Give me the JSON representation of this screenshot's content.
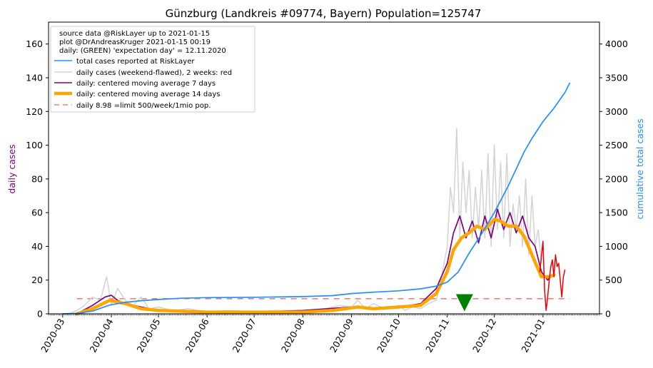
{
  "chart_data": {
    "type": "line",
    "title": "Günzburg (Landkreis #09774, Bayern) Population=125747",
    "ylabel_left": "daily cases",
    "ylabel_right": "cumulative total cases",
    "ylim_left": [
      0,
      173
    ],
    "ylim_right": [
      0,
      4325
    ],
    "yticks_left": [
      0,
      20,
      40,
      60,
      80,
      100,
      120,
      140,
      160
    ],
    "yticks_right": [
      0,
      500,
      1000,
      1500,
      2000,
      2500,
      3000,
      3500,
      4000
    ],
    "xlim": [
      "2020-02-21",
      "2021-02-06"
    ],
    "xticks": [
      {
        "date": "2020-03-01",
        "label": "2020-03"
      },
      {
        "date": "2020-04-01",
        "label": "2020-04"
      },
      {
        "date": "2020-05-01",
        "label": "2020-05"
      },
      {
        "date": "2020-06-01",
        "label": "2020-06"
      },
      {
        "date": "2020-07-01",
        "label": "2020-07"
      },
      {
        "date": "2020-08-01",
        "label": "2020-08"
      },
      {
        "date": "2020-09-01",
        "label": "2020-09"
      },
      {
        "date": "2020-10-01",
        "label": "2020-10"
      },
      {
        "date": "2020-11-01",
        "label": "2020-11"
      },
      {
        "date": "2020-12-01",
        "label": "2020-12"
      },
      {
        "date": "2021-01-01",
        "label": "2021-01"
      }
    ],
    "legend": {
      "position": "top-left",
      "notes": [
        "source data @RiskLayer up to 2021-01-15",
        "plot @DrAndreasKruger 2021-01-15 00:19",
        "daily: (GREEN) 'expectation day' = 12.11.2020"
      ],
      "entries": [
        {
          "label": "total cases reported at RiskLayer",
          "color": "#1e90ff",
          "style": "line"
        },
        {
          "label": "daily cases (weekend-flawed), 2 weeks: red",
          "color": "#d3d3d3",
          "style": "line"
        },
        {
          "label": "daily: centered moving average 7 days",
          "color": "#800080",
          "style": "line"
        },
        {
          "label": "daily: centered moving average 14 days",
          "color": "#ffa500",
          "style": "thick"
        },
        {
          "label": "daily 8.98 =limit 500/week/1mio pop.",
          "color": "#e9837a",
          "style": "dashed"
        }
      ]
    },
    "limit_value": 8.98,
    "limit_range": [
      "2020-03-10",
      "2021-01-18"
    ],
    "expectation_day": {
      "date": "2020-11-12",
      "y": 7
    },
    "series": [
      {
        "key": "cumulative",
        "axis": "right",
        "color": "#1e90ff",
        "x": [
          "2020-03-01",
          "2020-03-10",
          "2020-03-20",
          "2020-03-31",
          "2020-04-10",
          "2020-04-20",
          "2020-04-30",
          "2020-05-15",
          "2020-06-01",
          "2020-07-01",
          "2020-08-01",
          "2020-08-20",
          "2020-09-01",
          "2020-09-15",
          "2020-10-01",
          "2020-10-15",
          "2020-10-25",
          "2020-11-01",
          "2020-11-08",
          "2020-11-15",
          "2020-11-22",
          "2020-12-01",
          "2020-12-10",
          "2020-12-20",
          "2020-12-25",
          "2021-01-01",
          "2021-01-08",
          "2021-01-15",
          "2021-01-18"
        ],
        "y": [
          0,
          5,
          40,
          130,
          170,
          195,
          210,
          230,
          240,
          245,
          255,
          270,
          300,
          320,
          340,
          370,
          410,
          470,
          620,
          900,
          1150,
          1500,
          1900,
          2400,
          2600,
          2850,
          3050,
          3280,
          3420
        ]
      },
      {
        "key": "daily",
        "axis": "left",
        "color": "#d3d3d3",
        "x": [
          "2020-03-05",
          "2020-03-10",
          "2020-03-15",
          "2020-03-20",
          "2020-03-25",
          "2020-03-29",
          "2020-04-01",
          "2020-04-05",
          "2020-04-10",
          "2020-04-15",
          "2020-04-20",
          "2020-04-25",
          "2020-05-01",
          "2020-05-10",
          "2020-05-20",
          "2020-06-01",
          "2020-06-15",
          "2020-07-01",
          "2020-07-15",
          "2020-08-01",
          "2020-08-15",
          "2020-08-25",
          "2020-09-01",
          "2020-09-05",
          "2020-09-10",
          "2020-09-15",
          "2020-09-22",
          "2020-10-01",
          "2020-10-05",
          "2020-10-10",
          "2020-10-15",
          "2020-10-20",
          "2020-10-25",
          "2020-10-28",
          "2020-11-01",
          "2020-11-03",
          "2020-11-05",
          "2020-11-07",
          "2020-11-09",
          "2020-11-11",
          "2020-11-13",
          "2020-11-15",
          "2020-11-17",
          "2020-11-19",
          "2020-11-21",
          "2020-11-23",
          "2020-11-25",
          "2020-11-27",
          "2020-11-29",
          "2020-12-01",
          "2020-12-03",
          "2020-12-05",
          "2020-12-07",
          "2020-12-09",
          "2020-12-11",
          "2020-12-13",
          "2020-12-15",
          "2020-12-17",
          "2020-12-19",
          "2020-12-21",
          "2020-12-23",
          "2020-12-25",
          "2020-12-27",
          "2020-12-29",
          "2020-12-31"
        ],
        "y": [
          0,
          2,
          5,
          10,
          8,
          22,
          5,
          15,
          8,
          5,
          10,
          3,
          4,
          2,
          3,
          1,
          2,
          1,
          2,
          2,
          3,
          5,
          4,
          8,
          3,
          6,
          3,
          5,
          2,
          4,
          3,
          6,
          8,
          20,
          40,
          75,
          60,
          110,
          45,
          90,
          60,
          85,
          45,
          75,
          50,
          85,
          45,
          95,
          40,
          100,
          50,
          90,
          45,
          95,
          40,
          65,
          50,
          70,
          40,
          80,
          35,
          70,
          40,
          50,
          30
        ]
      },
      {
        "key": "daily_recent",
        "axis": "left",
        "color": "#ee0000",
        "x": [
          "2020-12-30",
          "2021-01-01",
          "2021-01-02",
          "2021-01-03",
          "2021-01-04",
          "2021-01-05",
          "2021-01-06",
          "2021-01-07",
          "2021-01-08",
          "2021-01-09",
          "2021-01-10",
          "2021-01-11",
          "2021-01-12",
          "2021-01-13",
          "2021-01-14",
          "2021-01-15"
        ],
        "y": [
          25,
          43,
          15,
          2,
          10,
          20,
          28,
          32,
          22,
          35,
          28,
          30,
          20,
          10,
          22,
          26
        ]
      },
      {
        "key": "ma7",
        "axis": "left",
        "color": "#800080",
        "x": [
          "2020-03-10",
          "2020-03-20",
          "2020-03-28",
          "2020-04-01",
          "2020-04-05",
          "2020-04-10",
          "2020-04-20",
          "2020-05-01",
          "2020-06-01",
          "2020-07-01",
          "2020-08-01",
          "2020-09-01",
          "2020-09-15",
          "2020-10-01",
          "2020-10-15",
          "2020-10-25",
          "2020-11-01",
          "2020-11-05",
          "2020-11-09",
          "2020-11-13",
          "2020-11-17",
          "2020-11-21",
          "2020-11-25",
          "2020-11-29",
          "2020-12-03",
          "2020-12-07",
          "2020-12-11",
          "2020-12-15",
          "2020-12-19",
          "2020-12-23",
          "2020-12-27",
          "2020-12-31",
          "2021-01-04",
          "2021-01-08"
        ],
        "y": [
          0,
          5,
          10,
          11,
          8,
          6,
          4,
          2,
          1,
          1,
          2,
          4,
          3,
          4,
          6,
          15,
          30,
          48,
          58,
          45,
          55,
          42,
          58,
          45,
          62,
          50,
          60,
          48,
          58,
          45,
          40,
          25,
          20,
          24
        ]
      },
      {
        "key": "ma14",
        "axis": "left",
        "color": "#ffa500",
        "x": [
          "2020-03-10",
          "2020-03-20",
          "2020-03-31",
          "2020-04-05",
          "2020-04-10",
          "2020-04-20",
          "2020-05-01",
          "2020-06-01",
          "2020-07-01",
          "2020-08-01",
          "2020-08-20",
          "2020-09-05",
          "2020-09-15",
          "2020-10-01",
          "2020-10-15",
          "2020-10-25",
          "2020-11-01",
          "2020-11-05",
          "2020-11-10",
          "2020-11-15",
          "2020-11-20",
          "2020-11-25",
          "2020-12-01",
          "2020-12-05",
          "2020-12-10",
          "2020-12-15",
          "2020-12-20",
          "2020-12-25",
          "2020-12-31",
          "2021-01-05",
          "2021-01-08"
        ],
        "y": [
          0,
          3,
          8,
          7,
          6,
          3,
          2,
          1,
          1,
          1,
          2,
          4,
          3,
          4,
          5,
          12,
          25,
          38,
          45,
          48,
          52,
          50,
          56,
          55,
          52,
          52,
          46,
          35,
          22,
          22,
          23
        ]
      }
    ]
  }
}
